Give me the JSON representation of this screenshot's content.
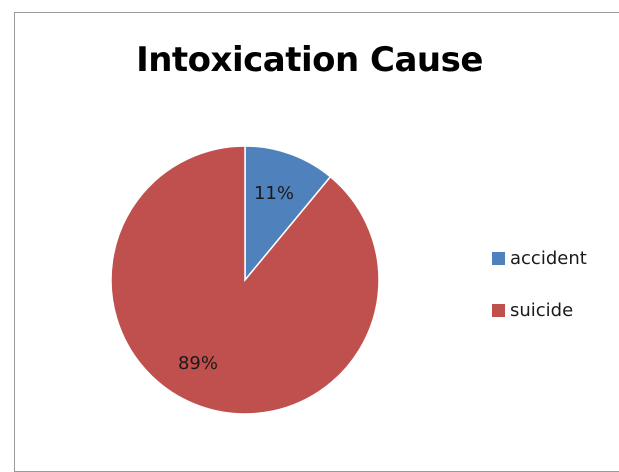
{
  "chart_data": {
    "type": "pie",
    "title": "Intoxication Cause",
    "legend_position": "right",
    "slices": [
      {
        "label": "accident",
        "value": 11,
        "display": "11%",
        "color": "#4f81bd"
      },
      {
        "label": "suicide",
        "value": 89,
        "display": "89%",
        "color": "#c0504d"
      }
    ]
  }
}
